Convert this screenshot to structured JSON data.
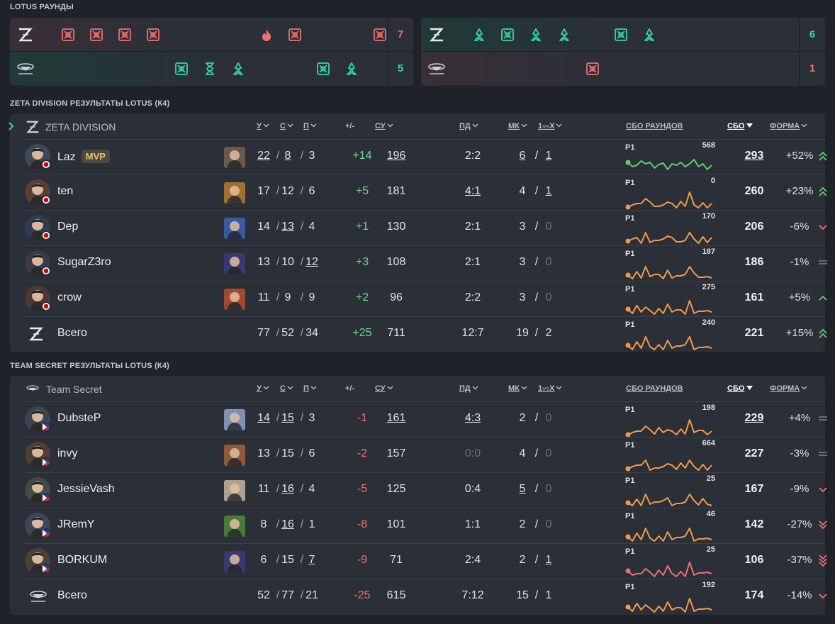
{
  "rounds_title": "LOTUS РАУНДЫ",
  "half1": {
    "top_score": "7",
    "bot_score": "5",
    "top_icons": [
      [
        "elim",
        0
      ],
      [
        "elim",
        1
      ],
      [
        "elim",
        2
      ],
      [
        "elim",
        3
      ],
      [
        "spike",
        7
      ],
      [
        "elim",
        8
      ],
      [
        "elim",
        11
      ]
    ],
    "bot_icons": [
      [
        "elim",
        4
      ],
      [
        "time",
        5
      ],
      [
        "defuse",
        6
      ],
      [
        "elim",
        9
      ],
      [
        "defuse",
        10
      ]
    ]
  },
  "half2": {
    "top_score": "6",
    "bot_score": "1",
    "top_icons": [
      [
        "defuse",
        0
      ],
      [
        "elim",
        1
      ],
      [
        "defuse",
        2
      ],
      [
        "defuse",
        3
      ],
      [
        "elim",
        5
      ],
      [
        "defuse",
        6
      ]
    ],
    "bot_icons": [
      [
        "elim",
        4
      ]
    ]
  },
  "colors": {
    "accent": "#35d6a6",
    "loss": "#f07070",
    "win_score": "#35d6a6",
    "spark_green": "#5fcc6f",
    "spark_orange": "#f09a4a",
    "spark_red": "#f07070"
  },
  "zeta": {
    "section_title": "ZETA DIVISION РЕЗУЛЬТАТЫ LOTUS (К4)",
    "team_name": "ZETA DIVISION",
    "headers": {
      "k": "У",
      "d": "С",
      "a": "П",
      "pm": "+/-",
      "adr": "СУ",
      "fkfd": "ПД",
      "mk": "МК",
      "clutch_pre": "1",
      "clutch_mid": "vs",
      "clutch_post": "X",
      "rounds": "СБО РАУНДОВ",
      "rating": "СБО",
      "form": "ФОРМА"
    },
    "players": [
      {
        "name": "Laz",
        "mvp": "MVP",
        "k": "22",
        "d": "8",
        "a": "3",
        "pm": "+14",
        "adr": "196",
        "fkfd": "2:2",
        "mk": "6",
        "clutch": "1",
        "r1": "Р1",
        "peak": "568",
        "rating": "293",
        "form": "+52%",
        "trend": "up2",
        "spark": "green"
      },
      {
        "name": "ten",
        "k": "17",
        "d": "12",
        "a": "6",
        "pm": "+5",
        "adr": "181",
        "fkfd": "4:1",
        "mk": "4",
        "clutch": "1",
        "r1": "Р1",
        "peak": "0",
        "rating": "260",
        "form": "+23%",
        "trend": "up2",
        "spark": "orange"
      },
      {
        "name": "Dep",
        "k": "14",
        "d": "13",
        "a": "4",
        "pm": "+1",
        "adr": "130",
        "fkfd": "2:1",
        "mk": "3",
        "clutch": "0",
        "r1": "Р1",
        "peak": "170",
        "rating": "206",
        "form": "-6%",
        "trend": "down1",
        "spark": "orange"
      },
      {
        "name": "SugarZ3ro",
        "k": "13",
        "d": "10",
        "a": "12",
        "pm": "+3",
        "adr": "108",
        "fkfd": "2:1",
        "mk": "3",
        "clutch": "0",
        "r1": "Р1",
        "peak": "187",
        "rating": "186",
        "form": "-1%",
        "trend": "flat",
        "spark": "orange"
      },
      {
        "name": "crow",
        "k": "11",
        "d": "9",
        "a": "9",
        "pm": "+2",
        "adr": "96",
        "fkfd": "2:2",
        "mk": "3",
        "clutch": "0",
        "r1": "Р1",
        "peak": "275",
        "rating": "161",
        "form": "+5%",
        "trend": "up1",
        "spark": "orange"
      }
    ],
    "total": {
      "name": "Всего",
      "k": "77",
      "d": "52",
      "a": "34",
      "pm": "+25",
      "adr": "711",
      "fkfd": "12:7",
      "mk": "19",
      "clutch": "2",
      "r1": "Р1",
      "peak": "240",
      "rating": "221",
      "form": "+15%",
      "trend": "up2"
    }
  },
  "secret": {
    "section_title": "TEAM SECRET РЕЗУЛЬТАТЫ LOTUS (К4)",
    "team_name": "Team Secret",
    "headers": {
      "k": "У",
      "d": "С",
      "a": "П",
      "pm": "+/-",
      "adr": "СУ",
      "fkfd": "ПД",
      "mk": "МК",
      "clutch_pre": "1",
      "clutch_mid": "vs",
      "clutch_post": "X",
      "rounds": "СБО РАУНДОВ",
      "rating": "СБО",
      "form": "ФОРМА"
    },
    "players": [
      {
        "name": "DubsteP",
        "k": "14",
        "d": "15",
        "a": "3",
        "pm": "-1",
        "adr": "161",
        "fkfd": "4:3",
        "mk": "2",
        "clutch": "0",
        "r1": "Р1",
        "peak": "198",
        "rating": "229",
        "form": "+4%",
        "trend": "flat",
        "spark": "orange"
      },
      {
        "name": "invy",
        "k": "13",
        "d": "15",
        "a": "6",
        "pm": "-2",
        "adr": "157",
        "fkfd": "0:0",
        "mk": "4",
        "clutch": "0",
        "r1": "Р1",
        "peak": "664",
        "rating": "227",
        "form": "-3%",
        "trend": "flat",
        "spark": "orange"
      },
      {
        "name": "JessieVash",
        "k": "11",
        "d": "16",
        "a": "4",
        "pm": "-5",
        "adr": "125",
        "fkfd": "0:4",
        "mk": "5",
        "clutch": "0",
        "r1": "Р1",
        "peak": "25",
        "rating": "167",
        "form": "-9%",
        "trend": "down1",
        "spark": "orange"
      },
      {
        "name": "JRemY",
        "k": "8",
        "d": "16",
        "a": "1",
        "pm": "-8",
        "adr": "101",
        "fkfd": "1:1",
        "mk": "2",
        "clutch": "0",
        "r1": "Р1",
        "peak": "46",
        "rating": "142",
        "form": "-27%",
        "trend": "down2",
        "spark": "orange"
      },
      {
        "name": "BORKUM",
        "k": "6",
        "d": "15",
        "a": "7",
        "pm": "-9",
        "adr": "71",
        "fkfd": "2:4",
        "mk": "2",
        "clutch": "1",
        "r1": "Р1",
        "peak": "25",
        "rating": "106",
        "form": "-37%",
        "trend": "down3",
        "spark": "red"
      }
    ],
    "total": {
      "name": "Всего",
      "k": "52",
      "d": "77",
      "a": "21",
      "pm": "-25",
      "adr": "615",
      "fkfd": "7:12",
      "mk": "15",
      "clutch": "1",
      "r1": "Р1",
      "peak": "192",
      "rating": "174",
      "form": "-14%",
      "trend": "down1"
    }
  }
}
